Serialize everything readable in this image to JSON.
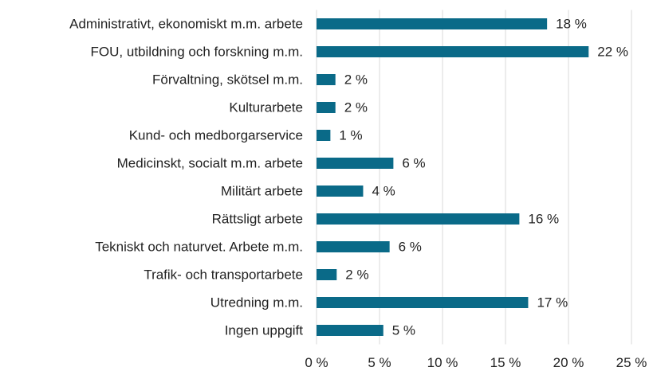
{
  "chart_data": {
    "type": "barh",
    "categories": [
      "Administrativt, ekonomiskt m.m. arbete",
      "FOU, utbildning och forskning m.m.",
      "Förvaltning, skötsel m.m.",
      "Kulturarbete",
      "Kund- och medborgarservice",
      "Medicinskt, socialt m.m. arbete",
      "Militärt arbete",
      "Rättsligt arbete",
      "Tekniskt och naturvet. Arbete m.m.",
      "Trafik- och transportarbete",
      "Utredning m.m.",
      "Ingen uppgift"
    ],
    "values": [
      18.3,
      21.6,
      1.5,
      1.5,
      1.1,
      6.1,
      3.7,
      16.1,
      5.8,
      1.6,
      16.8,
      5.3
    ],
    "value_labels": [
      "18 %",
      "22 %",
      "2 %",
      "2 %",
      "1 %",
      "6 %",
      "4 %",
      "16 %",
      "6 %",
      "2 %",
      "17 %",
      "5 %"
    ],
    "color": "#0a6a88",
    "xlim": [
      0,
      25
    ],
    "xticks": [
      {
        "value": 0,
        "label": "0 %"
      },
      {
        "value": 5,
        "label": "5 %"
      },
      {
        "value": 10,
        "label": "10 %"
      },
      {
        "value": 15,
        "label": "15 %"
      },
      {
        "value": 20,
        "label": "20 %"
      },
      {
        "value": 25,
        "label": "25 %"
      }
    ],
    "grid": true
  }
}
